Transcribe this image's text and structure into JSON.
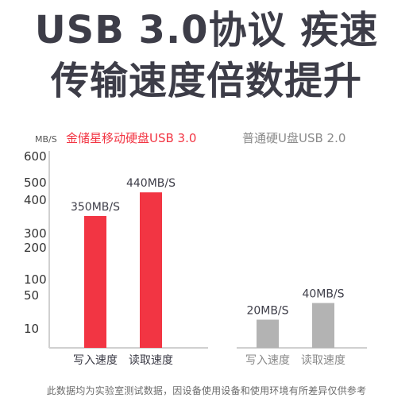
{
  "headline": {
    "line1": "USB 3.0协议 疾速",
    "line2": "传输速度倍数提升"
  },
  "footnote": "此数据均为实验室测试数据，因设备使用设备和使用环境有所差异仅供参考",
  "colors": {
    "accent_red": "#f23543",
    "bar_gray": "#b3b3b3",
    "axis_gray": "#d0d0d0",
    "text_dark": "#3d3d48",
    "legend_gray": "#8a8a8a"
  },
  "chart_data": {
    "type": "bar",
    "title": "",
    "ylabel": "MB/S",
    "xlabel": "",
    "yscale": "custom-compressed",
    "y_ticks": [
      10,
      50,
      100,
      200,
      300,
      400,
      500,
      600
    ],
    "ylim": [
      0,
      600
    ],
    "grid": false,
    "groups": [
      {
        "name": "金储星移动硬盘USB 3.0",
        "color": "#f23543",
        "categories": [
          "写入速度",
          "读取速度"
        ],
        "values": [
          350,
          440
        ],
        "data_labels": [
          "350MB/S",
          "440MB/S"
        ]
      },
      {
        "name": "普通硬U盘USB 2.0",
        "color": "#b3b3b3",
        "categories": [
          "写入速度",
          "读取速度"
        ],
        "values": [
          20,
          40
        ],
        "data_labels": [
          "20MB/S",
          "40MB/S"
        ]
      }
    ]
  }
}
